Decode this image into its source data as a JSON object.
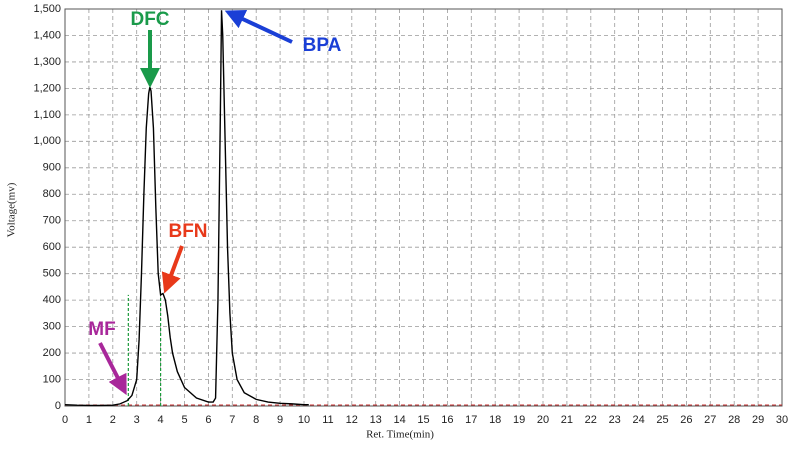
{
  "chart_data": {
    "type": "line",
    "x_label": "Ret. Time(min)",
    "y_label": "Voltage(mv)",
    "color": "#000000",
    "x": [
      0,
      0.5,
      1,
      1.5,
      2,
      2.3,
      2.6,
      2.8,
      3.0,
      3.1,
      3.2,
      3.3,
      3.4,
      3.5,
      3.55,
      3.6,
      3.7,
      3.8,
      3.9,
      4.0,
      4.1,
      4.2,
      4.3,
      4.4,
      4.5,
      4.7,
      5.0,
      5.5,
      6.0,
      6.2,
      6.3,
      6.4,
      6.5,
      6.55,
      6.6,
      6.7,
      6.8,
      6.9,
      7.0,
      7.2,
      7.5,
      8,
      8.5,
      9,
      9.5,
      10,
      10.2
    ],
    "values": [
      5,
      3,
      2,
      2,
      3,
      8,
      20,
      40,
      100,
      250,
      500,
      800,
      1050,
      1180,
      1205,
      1190,
      1050,
      750,
      500,
      420,
      425,
      400,
      340,
      260,
      200,
      130,
      70,
      30,
      15,
      15,
      30,
      400,
      1100,
      1495,
      1400,
      1000,
      600,
      350,
      200,
      100,
      50,
      25,
      15,
      10,
      8,
      5,
      5
    ],
    "xlim": [
      0,
      30
    ],
    "ylim": [
      0,
      1500
    ],
    "xticks": [
      0,
      1,
      2,
      3,
      4,
      5,
      6,
      7,
      8,
      9,
      10,
      11,
      12,
      13,
      14,
      15,
      16,
      17,
      18,
      19,
      20,
      21,
      22,
      23,
      24,
      25,
      26,
      27,
      28,
      29,
      30
    ],
    "yticks": [
      0,
      100,
      200,
      300,
      400,
      500,
      600,
      700,
      800,
      900,
      {
        "value": 1000,
        "label": "1,000"
      },
      {
        "value": 1100,
        "label": "1,100"
      },
      {
        "value": 1200,
        "label": "1,200"
      },
      {
        "value": 1300,
        "label": "1,300"
      },
      {
        "value": 1400,
        "label": "1,400"
      },
      {
        "value": 1500,
        "label": "1,500"
      }
    ],
    "grid": true,
    "markers": [
      2.65,
      4.0
    ],
    "marker_color": "#1a9a3a",
    "annotations": [
      {
        "text": "DFC",
        "color": "#1a9a4a"
      },
      {
        "text": "BPA",
        "color": "#1a3fd6"
      },
      {
        "text": "BFN",
        "color": "#e8391a"
      },
      {
        "text": "MF",
        "color": "#a8279a"
      }
    ]
  }
}
